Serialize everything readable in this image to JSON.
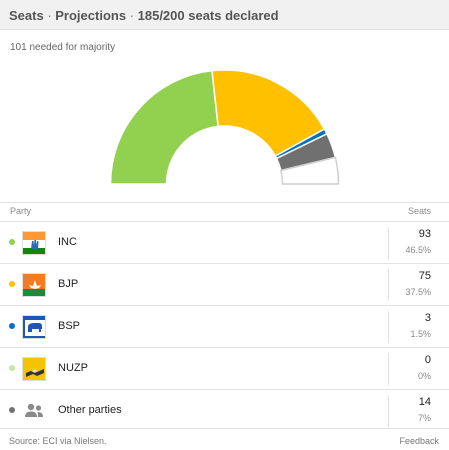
{
  "header": {
    "seats_label": "Seats",
    "projections_label": "Projections",
    "declared_label": "185/200 seats declared",
    "separator": " · "
  },
  "majority_note": "101 needed for majority",
  "table": {
    "party_header": "Party",
    "seats_header": "Seats"
  },
  "parties": [
    {
      "name": "INC",
      "seats": "93",
      "percent": "46.5%",
      "color": "#92d050",
      "symbol": "inc-flag-icon"
    },
    {
      "name": "BJP",
      "seats": "75",
      "percent": "37.5%",
      "color": "#ffc000",
      "symbol": "lotus-flag-icon"
    },
    {
      "name": "BSP",
      "seats": "3",
      "percent": "1.5%",
      "color": "#0070c0",
      "symbol": "elephant-icon"
    },
    {
      "name": "NUZP",
      "seats": "0",
      "percent": "0%",
      "color": "#c4e8a3",
      "symbol": "nuzp-symbol-icon"
    },
    {
      "name": "Other parties",
      "seats": "14",
      "percent": "7%",
      "color": "#707070",
      "symbol": "people-group-icon"
    }
  ],
  "chart_data": {
    "type": "pie",
    "style": "semicircle-parliament",
    "total_seats": 200,
    "declared_seats": 185,
    "undeclared_seats": 15,
    "segments": [
      {
        "label": "INC",
        "value": 93,
        "color": "#92d050"
      },
      {
        "label": "BJP",
        "value": 75,
        "color": "#ffc000"
      },
      {
        "label": "BSP",
        "value": 3,
        "color": "#0070c0"
      },
      {
        "label": "NUZP",
        "value": 0,
        "color": "#c4e8a3"
      },
      {
        "label": "Other parties",
        "value": 14,
        "color": "#707070"
      },
      {
        "label": "Undeclared",
        "value": 15,
        "color": "#ffffff"
      }
    ]
  },
  "footer": {
    "source": "Source: ECI via Nielsen.",
    "feedback": "Feedback"
  }
}
